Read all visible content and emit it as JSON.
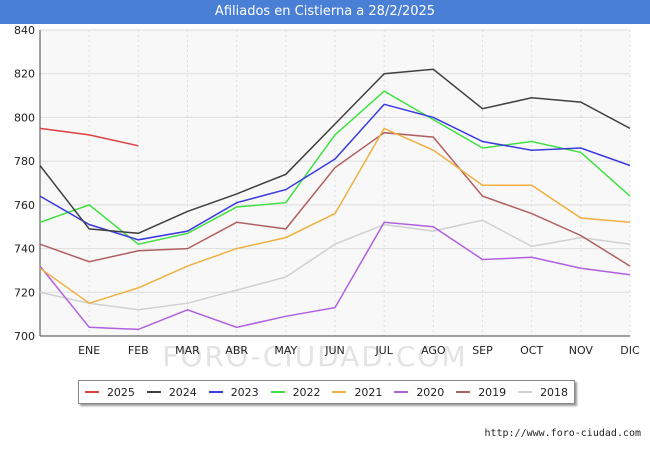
{
  "header": {
    "title": "Afiliados en Cistierna a 28/2/2025"
  },
  "footer": {
    "url": "http://www.foro-ciudad.com"
  },
  "watermark": "FORO-CIUDAD.COM",
  "chart_data": {
    "type": "line",
    "title": "Afiliados en Cistierna a 28/2/2025",
    "categories": [
      "",
      "ENE",
      "FEB",
      "MAR",
      "ABR",
      "MAY",
      "JUN",
      "JUL",
      "AGO",
      "SEP",
      "OCT",
      "NOV",
      "DIC"
    ],
    "y_ticks": [
      700,
      720,
      740,
      760,
      780,
      800,
      820,
      840
    ],
    "ylim": [
      700,
      840
    ],
    "grid": true,
    "legend_position": "bottom",
    "series": [
      {
        "name": "2025",
        "color": "#e04040",
        "values": [
          795,
          792,
          787,
          null,
          null,
          null,
          null,
          null,
          null,
          null,
          null,
          null,
          null
        ]
      },
      {
        "name": "2024",
        "color": "#404040",
        "values": [
          778,
          749,
          747,
          757,
          765,
          774,
          797,
          820,
          822,
          804,
          809,
          807,
          795
        ]
      },
      {
        "name": "2023",
        "color": "#3a3ae0",
        "values": [
          764,
          751,
          744,
          748,
          761,
          767,
          781,
          806,
          800,
          789,
          785,
          786,
          778
        ]
      },
      {
        "name": "2022",
        "color": "#40e040",
        "values": [
          752,
          760,
          742,
          747,
          759,
          761,
          792,
          812,
          799,
          786,
          789,
          784,
          764
        ]
      },
      {
        "name": "2021",
        "color": "#f0b040",
        "values": [
          731,
          715,
          722,
          732,
          740,
          745,
          756,
          795,
          785,
          769,
          769,
          754,
          752
        ]
      },
      {
        "name": "2020",
        "color": "#b060e0",
        "values": [
          732,
          704,
          703,
          712,
          704,
          709,
          713,
          752,
          750,
          735,
          736,
          731,
          728
        ]
      },
      {
        "name": "2019",
        "color": "#b06060",
        "values": [
          742,
          734,
          739,
          740,
          752,
          749,
          777,
          793,
          791,
          764,
          756,
          746,
          732
        ]
      },
      {
        "name": "2018",
        "color": "#d0d0d0",
        "values": [
          720,
          715,
          712,
          715,
          721,
          727,
          742,
          751,
          748,
          753,
          741,
          745,
          742
        ]
      }
    ]
  }
}
